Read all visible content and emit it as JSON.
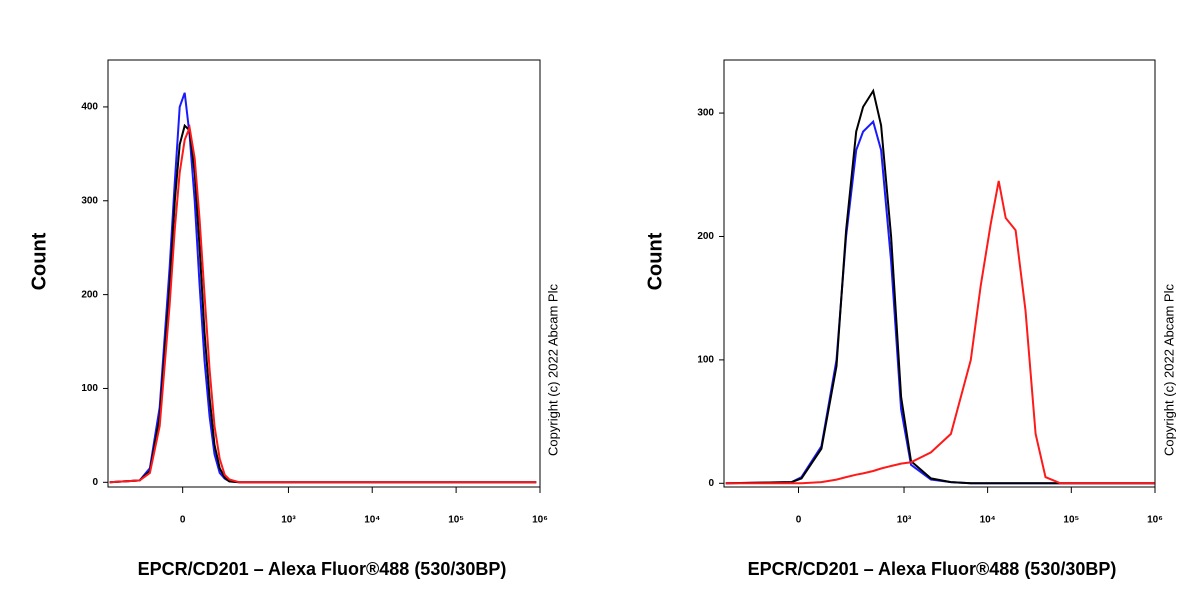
{
  "chart_data": [
    {
      "type": "line",
      "ylabel": "Count",
      "xlabel": "EPCR/CD201 – Alexa Fluor®488 (530/30BP)",
      "copyright": "Copyright (c) 2022 Abcam Plc",
      "xscale": "biexponential",
      "xlim": [
        -420,
        1000000
      ],
      "ylim": [
        -5,
        450
      ],
      "xticks": [
        0,
        {
          "value": 1000,
          "label": "10³"
        },
        {
          "value": 10000,
          "label": "10⁴"
        },
        {
          "value": 100000,
          "label": "10⁵"
        },
        {
          "value": 1000000,
          "label": "10⁶"
        }
      ],
      "yticks": [
        0,
        100,
        200,
        300,
        400
      ],
      "x": [
        -400,
        -162,
        -113,
        -74,
        -40,
        -24,
        -9,
        6,
        21,
        37,
        53,
        70,
        89,
        109,
        132,
        157,
        183,
        250,
        900000
      ],
      "series": [
        {
          "color": "#1a1aff",
          "values": [
            0,
            2,
            15,
            80,
            230,
            320,
            400,
            415,
            370,
            300,
            210,
            130,
            70,
            30,
            10,
            4,
            1,
            0,
            0
          ]
        },
        {
          "color": "#000000",
          "values": [
            0,
            2,
            12,
            70,
            210,
            300,
            360,
            380,
            375,
            330,
            250,
            160,
            90,
            40,
            15,
            5,
            1,
            0,
            0
          ]
        },
        {
          "color": "#ff1a1a",
          "values": [
            0,
            2,
            10,
            60,
            190,
            270,
            330,
            365,
            378,
            345,
            280,
            200,
            120,
            60,
            25,
            8,
            3,
            0,
            0
          ]
        }
      ]
    },
    {
      "type": "line",
      "ylabel": "Count",
      "xlabel": "EPCR/CD201 – Alexa Fluor®488 (530/30BP)",
      "copyright": "Copyright (c) 2022 Abcam Plc",
      "xscale": "biexponential",
      "xlim": [
        -420,
        1000000
      ],
      "ylim": [
        -3,
        343
      ],
      "xticks": [
        0,
        {
          "value": 1000,
          "label": "10³"
        },
        {
          "value": 10000,
          "label": "10⁴"
        },
        {
          "value": 100000,
          "label": "10⁵"
        },
        {
          "value": 1000000,
          "label": "10⁶"
        }
      ],
      "yticks": [
        0,
        100,
        200,
        300
      ],
      "x": [
        -399,
        -21,
        9,
        74,
        137,
        189,
        258,
        316,
        422,
        528,
        699,
        921,
        1214,
        2101,
        3641,
        6292,
        8272,
        10890,
        13552,
        16434,
        21615,
        28380,
        37400,
        49170,
        74140,
        990000
      ],
      "series": [
        {
          "color": "#1a1aff",
          "values": [
            0,
            1,
            5,
            30,
            100,
            200,
            270,
            285,
            293,
            270,
            180,
            60,
            15,
            3,
            1,
            0,
            0,
            0,
            0,
            0,
            0,
            0,
            0,
            0,
            0,
            0
          ]
        },
        {
          "color": "#000000",
          "values": [
            0,
            1,
            4,
            28,
            95,
            205,
            285,
            305,
            318,
            290,
            200,
            70,
            18,
            4,
            1,
            0,
            0,
            0,
            0,
            0,
            0,
            0,
            0,
            0,
            0,
            0
          ]
        },
        {
          "color": "#ff1a1a",
          "values": [
            0,
            0,
            0,
            1,
            3,
            5,
            7,
            8,
            10,
            12,
            14,
            16,
            17,
            25,
            40,
            100,
            160,
            210,
            245,
            215,
            205,
            140,
            40,
            5,
            0,
            0
          ]
        }
      ]
    }
  ]
}
